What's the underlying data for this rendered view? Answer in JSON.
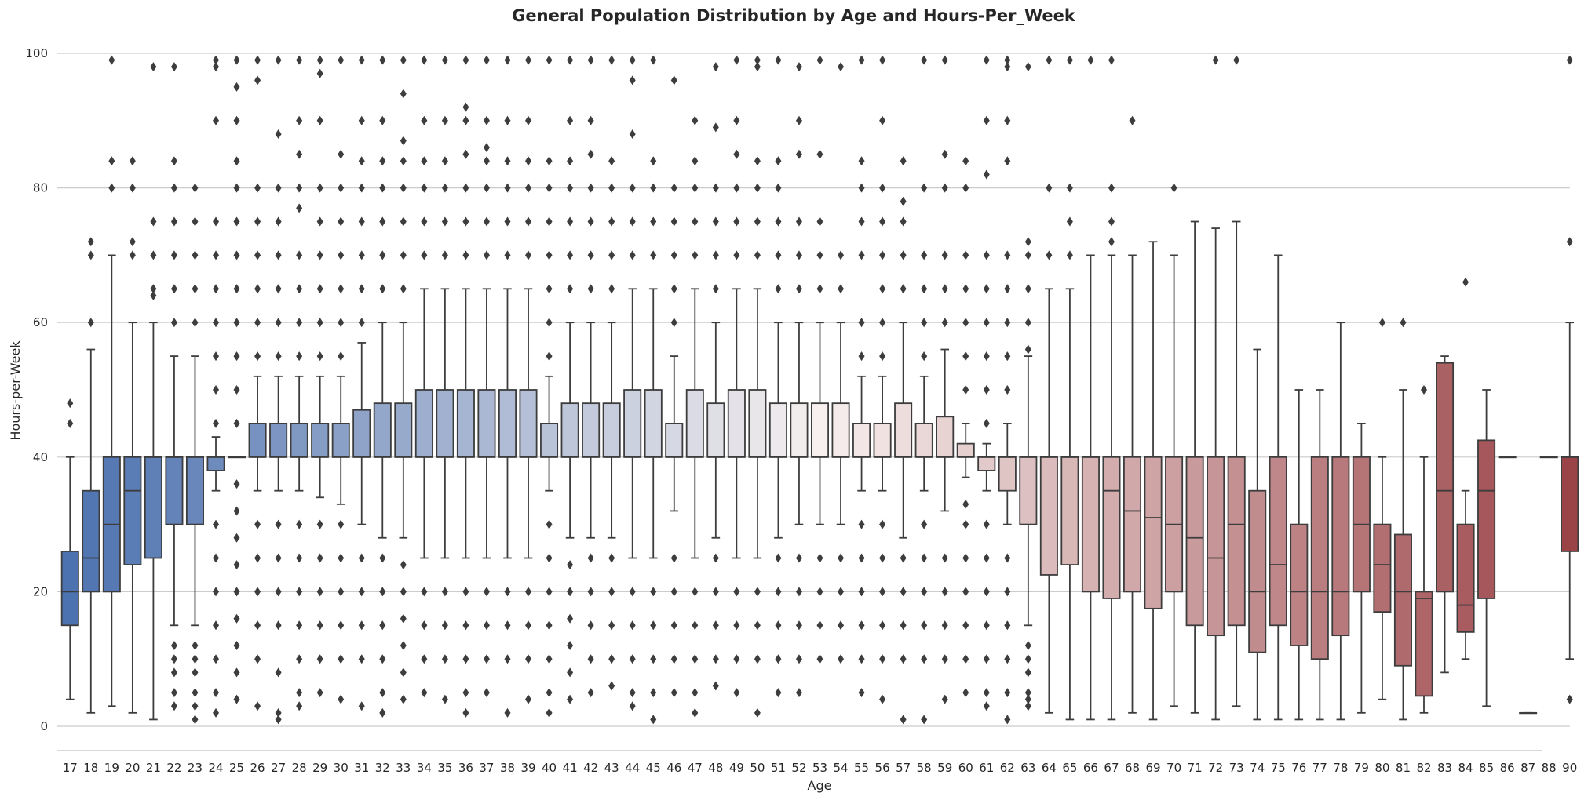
{
  "chart_data": {
    "type": "box",
    "title": "General Population Distribution by Age and Hours-Per_Week",
    "xlabel": "Age",
    "ylabel": "Hours-per-Week",
    "ylim": [
      -3,
      100
    ],
    "yticks": [
      0,
      20,
      40,
      60,
      80,
      100
    ],
    "grid": "horizontal",
    "palette": {
      "low": "#4c72b0",
      "mid": "#f7f0ef",
      "high": "#9b4448",
      "line": "#3d3d3d",
      "outlier": "#3d3d3d"
    },
    "categories": [
      "17",
      "18",
      "19",
      "20",
      "21",
      "22",
      "23",
      "24",
      "25",
      "26",
      "27",
      "28",
      "29",
      "30",
      "31",
      "32",
      "33",
      "34",
      "35",
      "36",
      "37",
      "38",
      "39",
      "40",
      "41",
      "42",
      "43",
      "44",
      "45",
      "46",
      "47",
      "48",
      "49",
      "50",
      "51",
      "52",
      "53",
      "54",
      "55",
      "56",
      "57",
      "58",
      "59",
      "60",
      "61",
      "62",
      "63",
      "64",
      "65",
      "66",
      "67",
      "68",
      "69",
      "70",
      "71",
      "72",
      "73",
      "74",
      "75",
      "76",
      "77",
      "78",
      "79",
      "80",
      "81",
      "82",
      "83",
      "84",
      "85",
      "86",
      "87",
      "88",
      "90"
    ],
    "boxes": [
      {
        "q1": 15,
        "median": 20,
        "q3": 26,
        "lo": 4,
        "hi": 40,
        "outliers": [
          45,
          48
        ]
      },
      {
        "q1": 20,
        "median": 25,
        "q3": 35,
        "lo": 2,
        "hi": 56,
        "outliers": [
          60,
          70,
          72
        ]
      },
      {
        "q1": 20,
        "median": 30,
        "q3": 40,
        "lo": 3,
        "hi": 70,
        "outliers": [
          80,
          84,
          99
        ]
      },
      {
        "q1": 24,
        "median": 35,
        "q3": 40,
        "lo": 2,
        "hi": 60,
        "outliers": [
          70,
          72,
          80,
          84
        ]
      },
      {
        "q1": 25,
        "median": 40,
        "q3": 40,
        "lo": 1,
        "hi": 60,
        "outliers": [
          64,
          65,
          70,
          75,
          98
        ]
      },
      {
        "q1": 30,
        "median": 40,
        "q3": 40,
        "lo": 15,
        "hi": 55,
        "outliers": [
          3,
          5,
          8,
          10,
          12,
          60,
          65,
          70,
          75,
          80,
          84,
          98
        ]
      },
      {
        "q1": 30,
        "median": 40,
        "q3": 40,
        "lo": 15,
        "hi": 55,
        "outliers": [
          1,
          3,
          5,
          8,
          10,
          12,
          60,
          65,
          70,
          75,
          80
        ]
      },
      {
        "q1": 38,
        "median": 40,
        "q3": 40,
        "lo": 35,
        "hi": 43,
        "outliers": [
          2,
          5,
          10,
          15,
          20,
          25,
          30,
          45,
          50,
          55,
          60,
          65,
          70,
          75,
          90,
          98,
          99
        ]
      },
      {
        "q1": 40,
        "median": 40,
        "q3": 40,
        "lo": 40,
        "hi": 40,
        "outliers": [
          4,
          8,
          12,
          16,
          20,
          24,
          28,
          32,
          36,
          45,
          50,
          55,
          60,
          65,
          70,
          75,
          80,
          84,
          90,
          95,
          99
        ]
      },
      {
        "q1": 40,
        "median": 40,
        "q3": 45,
        "lo": 35,
        "hi": 52,
        "outliers": [
          3,
          10,
          15,
          20,
          25,
          30,
          55,
          60,
          65,
          70,
          75,
          80,
          96,
          99
        ]
      },
      {
        "q1": 40,
        "median": 40,
        "q3": 45,
        "lo": 35,
        "hi": 52,
        "outliers": [
          1,
          2,
          8,
          15,
          20,
          25,
          30,
          55,
          60,
          65,
          70,
          75,
          80,
          88,
          99
        ]
      },
      {
        "q1": 40,
        "median": 40,
        "q3": 45,
        "lo": 35,
        "hi": 52,
        "outliers": [
          3,
          5,
          10,
          15,
          20,
          25,
          30,
          55,
          60,
          65,
          70,
          77,
          80,
          85,
          90,
          99
        ]
      },
      {
        "q1": 40,
        "median": 40,
        "q3": 45,
        "lo": 34,
        "hi": 52,
        "outliers": [
          5,
          10,
          15,
          20,
          25,
          30,
          55,
          60,
          65,
          70,
          75,
          80,
          90,
          97,
          99
        ]
      },
      {
        "q1": 40,
        "median": 40,
        "q3": 45,
        "lo": 33,
        "hi": 52,
        "outliers": [
          4,
          10,
          15,
          20,
          25,
          30,
          55,
          60,
          65,
          70,
          75,
          80,
          85,
          99
        ]
      },
      {
        "q1": 40,
        "median": 40,
        "q3": 47,
        "lo": 30,
        "hi": 57,
        "outliers": [
          3,
          10,
          15,
          20,
          25,
          60,
          65,
          70,
          75,
          80,
          84,
          90,
          99
        ]
      },
      {
        "q1": 40,
        "median": 40,
        "q3": 48,
        "lo": 28,
        "hi": 60,
        "outliers": [
          2,
          5,
          10,
          15,
          20,
          25,
          65,
          70,
          75,
          80,
          84,
          90,
          99
        ]
      },
      {
        "q1": 40,
        "median": 40,
        "q3": 48,
        "lo": 28,
        "hi": 60,
        "outliers": [
          4,
          8,
          12,
          16,
          20,
          24,
          65,
          70,
          75,
          80,
          84,
          87,
          94,
          99
        ]
      },
      {
        "q1": 40,
        "median": 40,
        "q3": 50,
        "lo": 25,
        "hi": 65,
        "outliers": [
          5,
          10,
          15,
          20,
          70,
          75,
          80,
          84,
          90,
          99
        ]
      },
      {
        "q1": 40,
        "median": 40,
        "q3": 50,
        "lo": 25,
        "hi": 65,
        "outliers": [
          4,
          10,
          15,
          20,
          70,
          75,
          80,
          84,
          90,
          99
        ]
      },
      {
        "q1": 40,
        "median": 40,
        "q3": 50,
        "lo": 25,
        "hi": 65,
        "outliers": [
          2,
          5,
          10,
          15,
          20,
          70,
          75,
          80,
          85,
          90,
          92,
          99
        ]
      },
      {
        "q1": 40,
        "median": 40,
        "q3": 50,
        "lo": 25,
        "hi": 65,
        "outliers": [
          5,
          10,
          15,
          20,
          70,
          75,
          80,
          84,
          86,
          90,
          99
        ]
      },
      {
        "q1": 40,
        "median": 40,
        "q3": 50,
        "lo": 25,
        "hi": 65,
        "outliers": [
          2,
          10,
          15,
          20,
          70,
          75,
          80,
          84,
          90,
          99
        ]
      },
      {
        "q1": 40,
        "median": 40,
        "q3": 50,
        "lo": 25,
        "hi": 65,
        "outliers": [
          4,
          10,
          15,
          20,
          70,
          75,
          80,
          84,
          90,
          99
        ]
      },
      {
        "q1": 40,
        "median": 40,
        "q3": 45,
        "lo": 35,
        "hi": 52,
        "outliers": [
          2,
          5,
          10,
          15,
          20,
          25,
          30,
          55,
          60,
          65,
          70,
          75,
          80,
          84,
          99
        ]
      },
      {
        "q1": 40,
        "median": 40,
        "q3": 48,
        "lo": 28,
        "hi": 60,
        "outliers": [
          4,
          8,
          12,
          16,
          20,
          24,
          65,
          70,
          75,
          80,
          84,
          90,
          99
        ]
      },
      {
        "q1": 40,
        "median": 40,
        "q3": 48,
        "lo": 28,
        "hi": 60,
        "outliers": [
          5,
          10,
          15,
          20,
          25,
          65,
          70,
          75,
          80,
          85,
          90,
          99
        ]
      },
      {
        "q1": 40,
        "median": 40,
        "q3": 48,
        "lo": 28,
        "hi": 60,
        "outliers": [
          6,
          10,
          15,
          20,
          25,
          65,
          70,
          75,
          80,
          84,
          99
        ]
      },
      {
        "q1": 40,
        "median": 40,
        "q3": 50,
        "lo": 25,
        "hi": 65,
        "outliers": [
          3,
          5,
          10,
          15,
          20,
          70,
          75,
          80,
          88,
          96,
          99
        ]
      },
      {
        "q1": 40,
        "median": 40,
        "q3": 50,
        "lo": 25,
        "hi": 65,
        "outliers": [
          1,
          5,
          10,
          15,
          20,
          70,
          75,
          80,
          84,
          99
        ]
      },
      {
        "q1": 40,
        "median": 40,
        "q3": 45,
        "lo": 32,
        "hi": 55,
        "outliers": [
          5,
          10,
          15,
          20,
          25,
          60,
          65,
          70,
          75,
          80,
          96
        ]
      },
      {
        "q1": 40,
        "median": 40,
        "q3": 50,
        "lo": 25,
        "hi": 65,
        "outliers": [
          2,
          5,
          10,
          15,
          20,
          70,
          75,
          80,
          84,
          90
        ]
      },
      {
        "q1": 40,
        "median": 40,
        "q3": 48,
        "lo": 28,
        "hi": 60,
        "outliers": [
          6,
          10,
          15,
          20,
          25,
          65,
          70,
          75,
          80,
          89,
          98
        ]
      },
      {
        "q1": 40,
        "median": 40,
        "q3": 50,
        "lo": 25,
        "hi": 65,
        "outliers": [
          5,
          10,
          15,
          20,
          70,
          75,
          80,
          85,
          90,
          99
        ]
      },
      {
        "q1": 40,
        "median": 40,
        "q3": 50,
        "lo": 25,
        "hi": 65,
        "outliers": [
          2,
          10,
          15,
          20,
          70,
          75,
          80,
          84,
          98,
          99
        ]
      },
      {
        "q1": 40,
        "median": 40,
        "q3": 48,
        "lo": 28,
        "hi": 60,
        "outliers": [
          5,
          10,
          15,
          20,
          25,
          65,
          70,
          75,
          80,
          84,
          99
        ]
      },
      {
        "q1": 40,
        "median": 40,
        "q3": 48,
        "lo": 30,
        "hi": 60,
        "outliers": [
          5,
          10,
          15,
          20,
          25,
          65,
          70,
          75,
          85,
          90,
          98
        ]
      },
      {
        "q1": 40,
        "median": 40,
        "q3": 48,
        "lo": 30,
        "hi": 60,
        "outliers": [
          10,
          15,
          20,
          25,
          65,
          70,
          75,
          85,
          99
        ]
      },
      {
        "q1": 40,
        "median": 40,
        "q3": 48,
        "lo": 30,
        "hi": 60,
        "outliers": [
          10,
          15,
          20,
          25,
          65,
          70,
          98
        ]
      },
      {
        "q1": 40,
        "median": 40,
        "q3": 45,
        "lo": 35,
        "hi": 52,
        "outliers": [
          5,
          10,
          15,
          20,
          25,
          30,
          55,
          60,
          70,
          75,
          80,
          84,
          99
        ]
      },
      {
        "q1": 40,
        "median": 40,
        "q3": 45,
        "lo": 35,
        "hi": 52,
        "outliers": [
          4,
          10,
          15,
          20,
          25,
          30,
          55,
          60,
          65,
          70,
          75,
          80,
          90,
          99
        ]
      },
      {
        "q1": 40,
        "median": 40,
        "q3": 48,
        "lo": 28,
        "hi": 60,
        "outliers": [
          1,
          10,
          15,
          20,
          25,
          65,
          70,
          75,
          78,
          84
        ]
      },
      {
        "q1": 40,
        "median": 40,
        "q3": 45,
        "lo": 35,
        "hi": 52,
        "outliers": [
          1,
          10,
          15,
          20,
          25,
          30,
          55,
          60,
          65,
          70,
          80,
          99
        ]
      },
      {
        "q1": 40,
        "median": 40,
        "q3": 46,
        "lo": 32,
        "hi": 56,
        "outliers": [
          4,
          10,
          15,
          20,
          25,
          60,
          65,
          70,
          80,
          85,
          99
        ]
      },
      {
        "q1": 40,
        "median": 40,
        "q3": 42,
        "lo": 37,
        "hi": 45,
        "outliers": [
          5,
          10,
          15,
          20,
          25,
          30,
          33,
          50,
          55,
          60,
          65,
          70,
          80,
          84
        ]
      },
      {
        "q1": 38,
        "median": 40,
        "q3": 40,
        "lo": 35,
        "hi": 42,
        "outliers": [
          3,
          5,
          10,
          15,
          20,
          25,
          30,
          45,
          50,
          55,
          60,
          65,
          70,
          82,
          90,
          99
        ]
      },
      {
        "q1": 35,
        "median": 40,
        "q3": 40,
        "lo": 30,
        "hi": 45,
        "outliers": [
          1,
          5,
          10,
          15,
          20,
          25,
          50,
          55,
          60,
          65,
          70,
          84,
          90,
          98,
          99
        ]
      },
      {
        "q1": 30,
        "median": 40,
        "q3": 40,
        "lo": 15,
        "hi": 55,
        "outliers": [
          3,
          4,
          5,
          8,
          10,
          12,
          56,
          60,
          65,
          70,
          72,
          98
        ]
      },
      {
        "q1": 22.5,
        "median": 40,
        "q3": 40,
        "lo": 2,
        "hi": 65,
        "outliers": [
          70,
          80,
          99
        ]
      },
      {
        "q1": 24,
        "median": 40,
        "q3": 40,
        "lo": 1,
        "hi": 65,
        "outliers": [
          70,
          75,
          80,
          99
        ]
      },
      {
        "q1": 20,
        "median": 40,
        "q3": 40,
        "lo": 1,
        "hi": 70,
        "outliers": [
          99
        ]
      },
      {
        "q1": 19,
        "median": 35,
        "q3": 40,
        "lo": 1,
        "hi": 70,
        "outliers": [
          72,
          75,
          80,
          99
        ]
      },
      {
        "q1": 20,
        "median": 32,
        "q3": 40,
        "lo": 2,
        "hi": 70,
        "outliers": [
          90
        ]
      },
      {
        "q1": 17.5,
        "median": 31,
        "q3": 40,
        "lo": 1,
        "hi": 72,
        "outliers": []
      },
      {
        "q1": 20,
        "median": 30,
        "q3": 40,
        "lo": 3,
        "hi": 70,
        "outliers": [
          80
        ]
      },
      {
        "q1": 15,
        "median": 28,
        "q3": 40,
        "lo": 2,
        "hi": 75,
        "outliers": []
      },
      {
        "q1": 13.5,
        "median": 25,
        "q3": 40,
        "lo": 1,
        "hi": 74,
        "outliers": [
          99
        ]
      },
      {
        "q1": 15,
        "median": 30,
        "q3": 40,
        "lo": 3,
        "hi": 75,
        "outliers": [
          99
        ]
      },
      {
        "q1": 11,
        "median": 20,
        "q3": 35,
        "lo": 1,
        "hi": 56,
        "outliers": []
      },
      {
        "q1": 15,
        "median": 24,
        "q3": 40,
        "lo": 1,
        "hi": 70,
        "outliers": []
      },
      {
        "q1": 12,
        "median": 20,
        "q3": 30,
        "lo": 1,
        "hi": 50,
        "outliers": []
      },
      {
        "q1": 10,
        "median": 20,
        "q3": 40,
        "lo": 1,
        "hi": 50,
        "outliers": []
      },
      {
        "q1": 13.5,
        "median": 20,
        "q3": 40,
        "lo": 1,
        "hi": 60,
        "outliers": []
      },
      {
        "q1": 20,
        "median": 30,
        "q3": 40,
        "lo": 2,
        "hi": 45,
        "outliers": []
      },
      {
        "q1": 17,
        "median": 24,
        "q3": 30,
        "lo": 4,
        "hi": 40,
        "outliers": [
          60
        ]
      },
      {
        "q1": 9,
        "median": 20,
        "q3": 28.5,
        "lo": 1,
        "hi": 50,
        "outliers": [
          60
        ]
      },
      {
        "q1": 4.5,
        "median": 19,
        "q3": 20,
        "lo": 2,
        "hi": 40,
        "outliers": [
          50
        ]
      },
      {
        "q1": 20,
        "median": 35,
        "q3": 54,
        "lo": 8,
        "hi": 55,
        "outliers": []
      },
      {
        "q1": 14,
        "median": 18,
        "q3": 30,
        "lo": 10,
        "hi": 35,
        "outliers": [
          66
        ]
      },
      {
        "q1": 19,
        "median": 35,
        "q3": 42.5,
        "lo": 3,
        "hi": 50,
        "outliers": []
      },
      {
        "q1": 40,
        "median": 40,
        "q3": 40,
        "lo": 40,
        "hi": 40,
        "outliers": []
      },
      {
        "q1": 2,
        "median": 2,
        "q3": 2,
        "lo": 2,
        "hi": 2,
        "outliers": []
      },
      {
        "q1": 40,
        "median": 40,
        "q3": 40,
        "lo": 40,
        "hi": 40,
        "outliers": []
      },
      {
        "q1": 26,
        "median": 40,
        "q3": 40,
        "lo": 10,
        "hi": 60,
        "outliers": [
          4,
          72,
          99
        ]
      }
    ]
  }
}
